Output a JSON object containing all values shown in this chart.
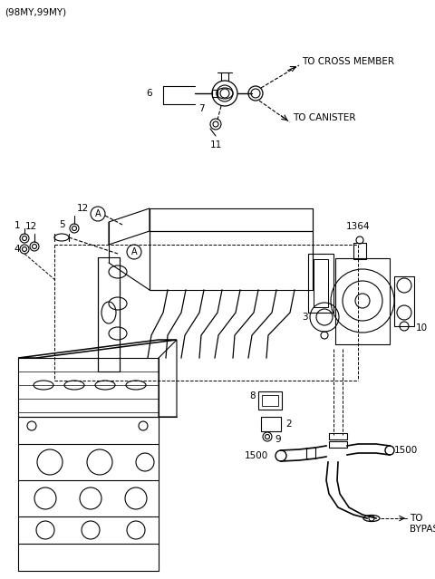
{
  "bg_color": "#ffffff",
  "labels": {
    "top_left": "(98MY,99MY)",
    "to_cross_member": "TO CROSS MEMBER",
    "to_canister": "TO CANISTER",
    "to_bypass": "TO\nBYPASS",
    "part_6": "6",
    "part_7": "7",
    "part_11": "11",
    "part_1": "1",
    "part_4": "4",
    "part_5": "5",
    "part_12a": "12",
    "part_12b": "12",
    "part_A1": "A",
    "part_A2": "A",
    "part_2": "2",
    "part_3": "3",
    "part_8": "8",
    "part_9": "9",
    "part_10": "10",
    "part_1364": "1364",
    "part_1500a": "1500",
    "part_1500b": "1500"
  },
  "figsize": [
    4.8,
    6.39
  ],
  "dpi": 100
}
